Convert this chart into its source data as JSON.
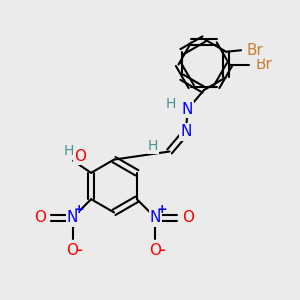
{
  "background_color": "#ebebeb",
  "bond_color": "#000000",
  "bond_width": 1.5,
  "atoms": {
    "Br": {
      "color": "#cd7f32",
      "fontsize": 11
    },
    "N": {
      "color": "#0000ff",
      "fontsize": 11
    },
    "O": {
      "color": "#ff0000",
      "fontsize": 11
    },
    "H": {
      "color": "#4a9090",
      "fontsize": 10
    },
    "plus": {
      "color": "#0000ff",
      "fontsize": 9
    },
    "minus": {
      "color": "#ff0000",
      "fontsize": 12
    }
  },
  "figsize": [
    3.0,
    3.0
  ],
  "dpi": 100
}
